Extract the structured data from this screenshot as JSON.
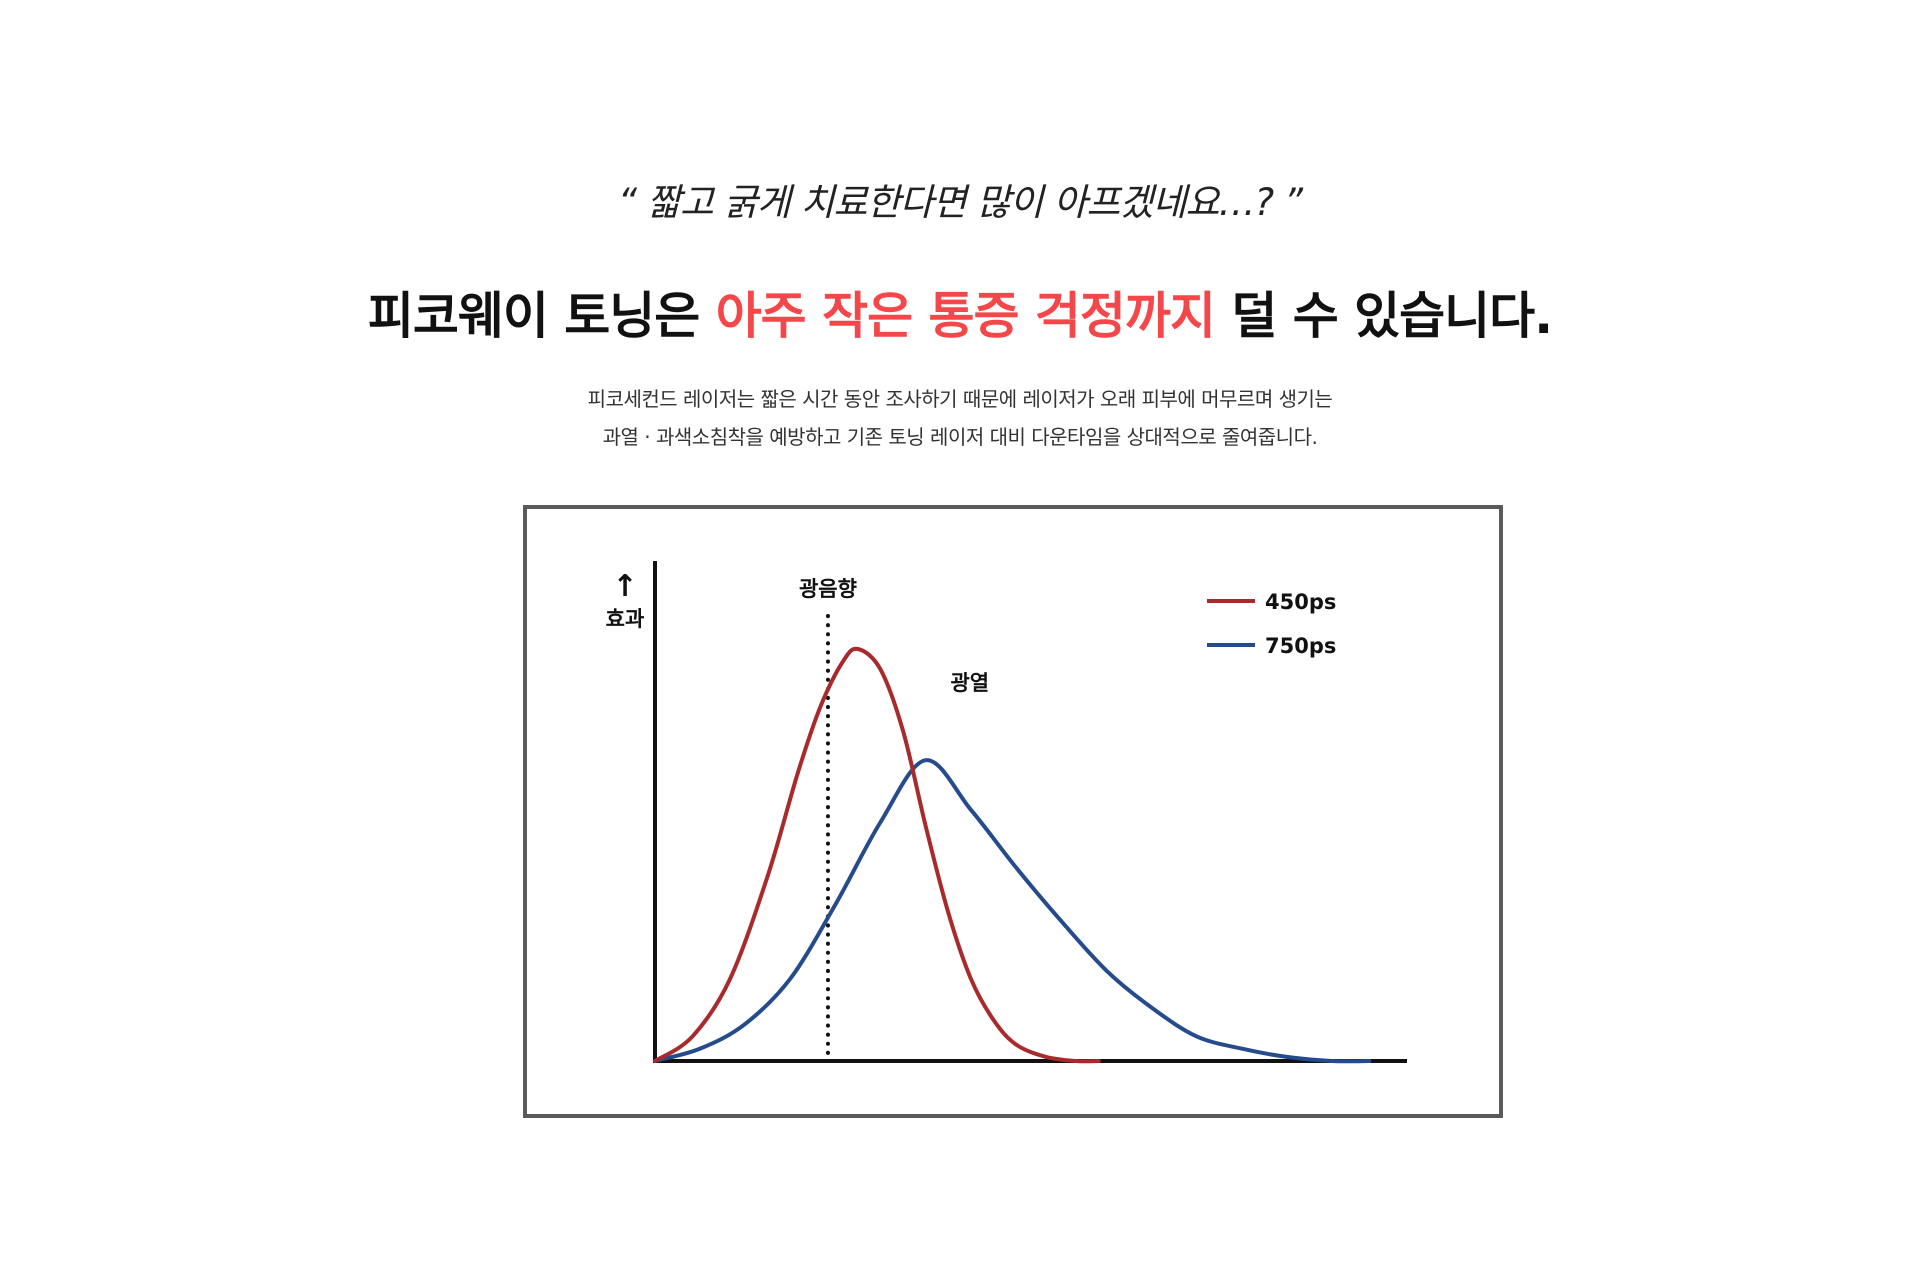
{
  "quote": "“ 짧고 굵게 치료한다면 많이 아프겠네요…? ”",
  "headline": {
    "part1": "피코웨이 토닝은 ",
    "highlight": "아주 작은 통증 걱정까지",
    "part2": " 덜 수 있습니다."
  },
  "description": {
    "line1": "피코세컨드 레이저는 짧은 시간 동안 조사하기 때문에 레이저가 오래 피부에 머무르며 생기는",
    "line2": "과열 · 과색소침착을 예방하고 기존 토닝 레이저 대비 다운타임을 상대적으로 줄여줍니다."
  },
  "colors": {
    "highlight": "#f4474a",
    "series_450": "#a82a2c",
    "series_750": "#254b8d",
    "frame": "#5a5a5a"
  },
  "chart_data": {
    "type": "line",
    "ylabel": "효과",
    "ylabel_arrow": "↑",
    "xlim": [
      0,
      10
    ],
    "ylim": [
      0,
      1
    ],
    "grid": false,
    "legend_position": "top-right",
    "series": [
      {
        "name": "450ps",
        "color": "#a82a2c",
        "x": [
          0,
          0.5,
          1.0,
          1.5,
          1.9,
          2.2,
          2.5,
          2.7,
          3.0,
          3.3,
          3.6,
          3.9,
          4.2,
          4.5,
          4.8,
          5.2,
          5.6,
          5.9
        ],
        "y": [
          0.0,
          0.06,
          0.2,
          0.45,
          0.7,
          0.86,
          0.97,
          1.0,
          0.95,
          0.8,
          0.57,
          0.36,
          0.2,
          0.1,
          0.04,
          0.01,
          0.0,
          0.0
        ]
      },
      {
        "name": "750ps",
        "color": "#254b8d",
        "x": [
          0,
          0.6,
          1.2,
          1.8,
          2.4,
          3.0,
          3.6,
          4.2,
          4.8,
          5.4,
          6.0,
          6.6,
          7.2,
          7.8,
          8.4,
          9.0,
          9.5
        ],
        "y": [
          0.0,
          0.03,
          0.09,
          0.2,
          0.38,
          0.58,
          0.73,
          0.61,
          0.47,
          0.34,
          0.22,
          0.13,
          0.06,
          0.03,
          0.01,
          0.0,
          0.0
        ]
      }
    ],
    "annotations": [
      {
        "text": "광음향",
        "x": 2.3,
        "style": "dotted-vertical-line"
      },
      {
        "text": "광열",
        "x": 4.0,
        "y": 0.92
      }
    ]
  }
}
